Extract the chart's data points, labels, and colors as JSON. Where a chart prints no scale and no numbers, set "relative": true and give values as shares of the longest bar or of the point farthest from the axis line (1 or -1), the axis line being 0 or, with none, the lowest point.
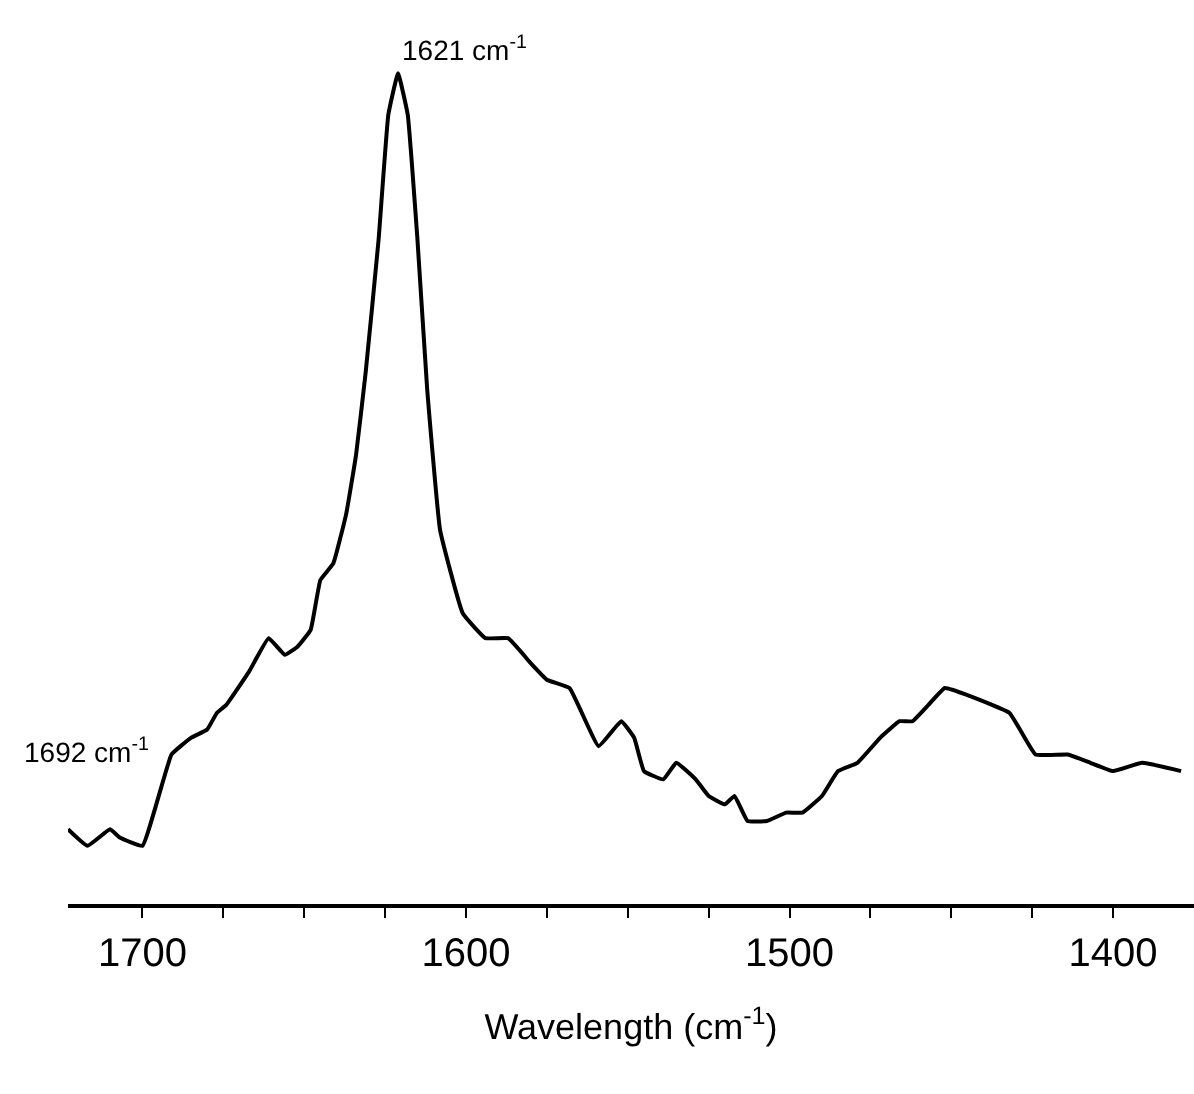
{
  "chart_data": {
    "type": "line",
    "relative": true,
    "xlabel": "Wavelength (cm$^{-1}$)",
    "color": "#000000",
    "marker": "none",
    "line_style": "solid",
    "xlim": [
      1723,
      1375
    ],
    "xticks": [
      1700,
      {
        "value": 1675,
        "label": null
      },
      {
        "value": 1650,
        "label": null
      },
      {
        "value": 1625,
        "label": null
      },
      1600,
      {
        "value": 1575,
        "label": null
      },
      {
        "value": 1550,
        "label": null
      },
      {
        "value": 1525,
        "label": null
      },
      1500,
      {
        "value": 1475,
        "label": null
      },
      {
        "value": 1450,
        "label": null
      },
      {
        "value": 1425,
        "label": null
      },
      1400
    ],
    "x": [
      1723,
      1717,
      1710,
      1707,
      1700,
      1691,
      1685,
      1680,
      1677,
      1674,
      1667,
      1661,
      1656,
      1652,
      1648,
      1645,
      1641,
      1637,
      1634,
      1631,
      1627,
      1624,
      1621,
      1618,
      1615,
      1612,
      1608,
      1601,
      1594,
      1587,
      1580,
      1575,
      1568,
      1559,
      1552,
      1548,
      1545,
      1539,
      1535,
      1529,
      1525,
      1520,
      1517,
      1513,
      1507,
      1501,
      1496,
      1490,
      1485,
      1479,
      1472,
      1466,
      1462,
      1457,
      1452,
      1444,
      1432,
      1424,
      1414,
      1407,
      1400,
      1391,
      1379
    ],
    "values": [
      0.09,
      0.07,
      0.09,
      0.08,
      0.07,
      0.18,
      0.2,
      0.21,
      0.23,
      0.24,
      0.28,
      0.32,
      0.3,
      0.31,
      0.33,
      0.39,
      0.41,
      0.47,
      0.54,
      0.64,
      0.8,
      0.95,
      1,
      0.95,
      0.8,
      0.62,
      0.45,
      0.35,
      0.32,
      0.32,
      0.29,
      0.27,
      0.26,
      0.19,
      0.22,
      0.2,
      0.16,
      0.15,
      0.17,
      0.15,
      0.13,
      0.12,
      0.13,
      0.1,
      0.1,
      0.11,
      0.11,
      0.13,
      0.16,
      0.17,
      0.2,
      0.22,
      0.22,
      0.24,
      0.26,
      0.25,
      0.23,
      0.18,
      0.18,
      0.17,
      0.16,
      0.17,
      0.16
    ],
    "annotations": [
      {
        "text": "1621 cm$^{-1}$",
        "x": 1621,
        "y": 1
      },
      {
        "text": "1692 cm$^{-1}$",
        "x": 1692,
        "y": 0.18
      }
    ]
  }
}
